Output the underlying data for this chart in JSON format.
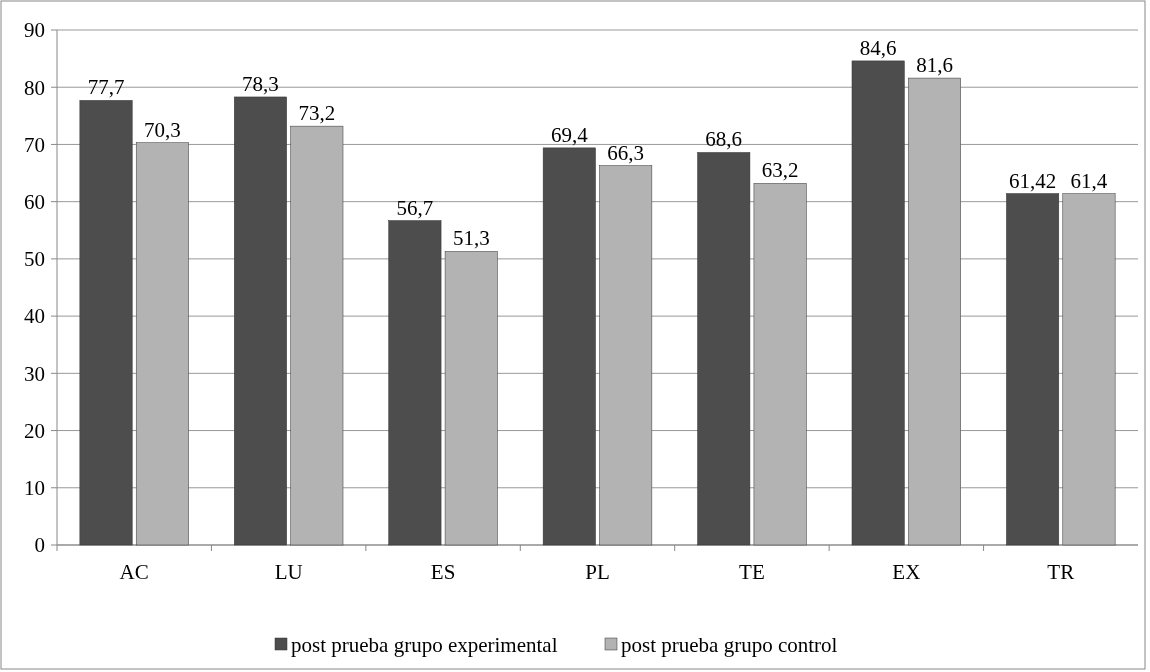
{
  "chart_data": {
    "type": "bar",
    "categories": [
      "AC",
      "LU",
      "ES",
      "PL",
      "TE",
      "EX",
      "TR"
    ],
    "series": [
      {
        "name": "post prueba grupo experimental",
        "color": "#4d4d4d",
        "values": [
          77.7,
          78.3,
          56.7,
          69.4,
          68.6,
          84.6,
          61.42
        ],
        "value_labels": [
          "77,7",
          "78,3",
          "56,7",
          "69,4",
          "68,6",
          "84,6",
          "61,42"
        ]
      },
      {
        "name": "post prueba grupo control",
        "color": "#b3b3b3",
        "values": [
          70.3,
          73.2,
          51.3,
          66.3,
          63.2,
          81.6,
          61.4
        ],
        "value_labels": [
          "70,3",
          "73,2",
          "51,3",
          "66,3",
          "63,2",
          "81,6",
          "61,4"
        ]
      }
    ],
    "ylim": [
      0,
      90
    ],
    "yticks": [
      0,
      10,
      20,
      30,
      40,
      50,
      60,
      70,
      80,
      90
    ],
    "grid": "y",
    "legend": "bottom"
  }
}
